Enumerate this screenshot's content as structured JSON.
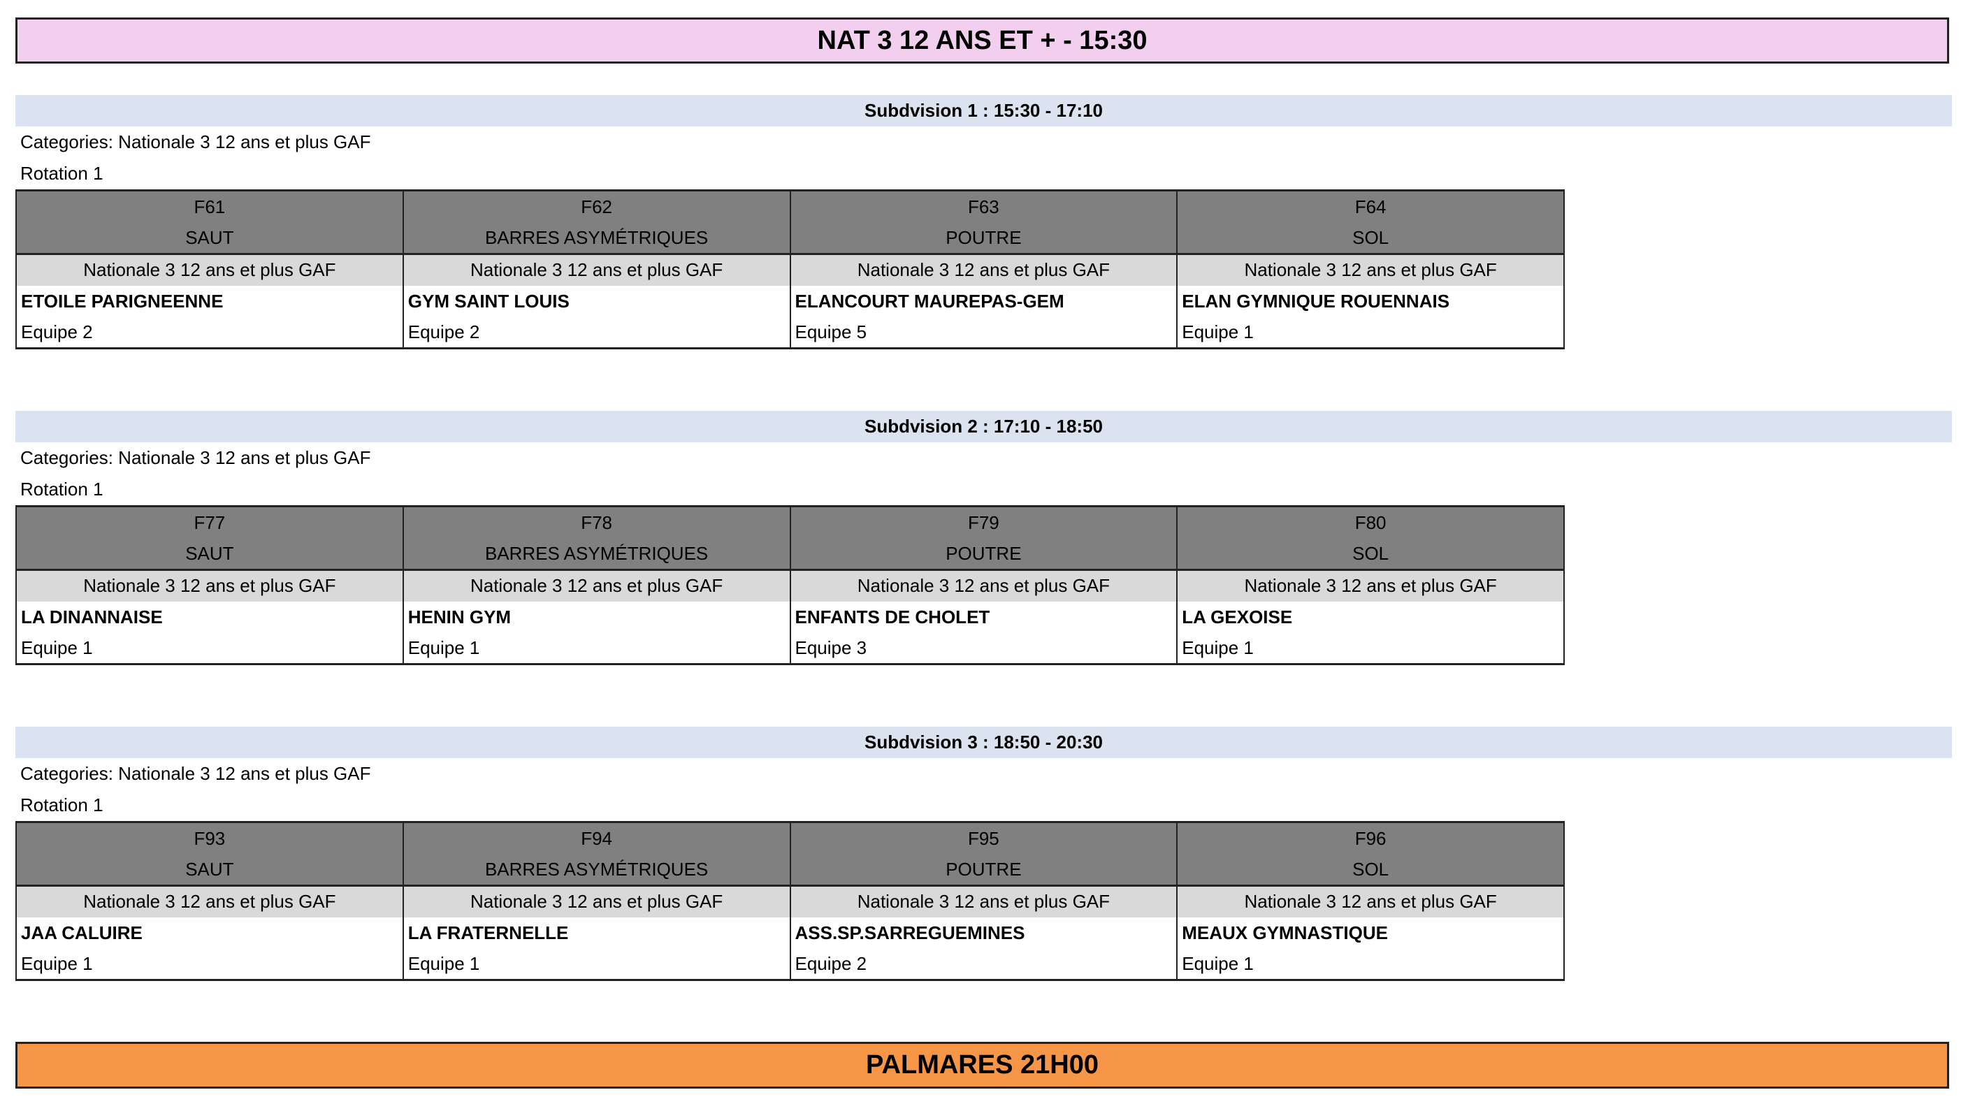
{
  "title": "NAT 3 12 ANS ET + - 15:30",
  "footer": "PALMARES 21H00",
  "colors": {
    "title_bg": "#F2CEEF",
    "subdivision_bg": "#DCE3F0",
    "header_bg": "#808080",
    "category_bg": "#D9D9D9",
    "palmares_bg": "#F79646"
  },
  "subdivisions": [
    {
      "heading": "Subdvision 1 : 15:30 - 17:10",
      "categories": "Categories: Nationale 3 12 ans et plus GAF",
      "rotation": "Rotation 1",
      "columns": [
        {
          "code": "F61",
          "apparatus": "SAUT",
          "category": "Nationale 3 12 ans et plus GAF",
          "club": "ETOILE PARIGNEENNE",
          "team": "Equipe 2"
        },
        {
          "code": "F62",
          "apparatus": "BARRES ASYMÉTRIQUES",
          "category": "Nationale 3 12 ans et plus GAF",
          "club": "GYM SAINT LOUIS",
          "team": "Equipe 2"
        },
        {
          "code": "F63",
          "apparatus": "POUTRE",
          "category": "Nationale 3 12 ans et plus GAF",
          "club": "ELANCOURT MAUREPAS-GEM",
          "team": "Equipe 5"
        },
        {
          "code": "F64",
          "apparatus": "SOL",
          "category": "Nationale 3 12 ans et plus GAF",
          "club": "ELAN GYMNIQUE ROUENNAIS",
          "team": "Equipe 1"
        }
      ]
    },
    {
      "heading": "Subdvision 2 : 17:10 - 18:50",
      "categories": "Categories: Nationale 3 12 ans et plus GAF",
      "rotation": "Rotation 1",
      "columns": [
        {
          "code": "F77",
          "apparatus": "SAUT",
          "category": "Nationale 3 12 ans et plus GAF",
          "club": "LA DINANNAISE",
          "team": "Equipe 1"
        },
        {
          "code": "F78",
          "apparatus": "BARRES ASYMÉTRIQUES",
          "category": "Nationale 3 12 ans et plus GAF",
          "club": "HENIN GYM",
          "team": "Equipe 1"
        },
        {
          "code": "F79",
          "apparatus": "POUTRE",
          "category": "Nationale 3 12 ans et plus GAF",
          "club": "ENFANTS DE CHOLET",
          "team": "Equipe 3"
        },
        {
          "code": "F80",
          "apparatus": "SOL",
          "category": "Nationale 3 12 ans et plus GAF",
          "club": "LA GEXOISE",
          "team": "Equipe 1"
        }
      ]
    },
    {
      "heading": "Subdvision 3 : 18:50 - 20:30",
      "categories": "Categories: Nationale 3 12 ans et plus GAF",
      "rotation": "Rotation 1",
      "columns": [
        {
          "code": "F93",
          "apparatus": "SAUT",
          "category": "Nationale 3 12 ans et plus GAF",
          "club": "JAA CALUIRE",
          "team": "Equipe 1"
        },
        {
          "code": "F94",
          "apparatus": "BARRES ASYMÉTRIQUES",
          "category": "Nationale 3 12 ans et plus GAF",
          "club": "LA FRATERNELLE",
          "team": "Equipe 1"
        },
        {
          "code": "F95",
          "apparatus": "POUTRE",
          "category": "Nationale 3 12 ans et plus GAF",
          "club": "ASS.SP.SARREGUEMINES",
          "team": "Equipe 2"
        },
        {
          "code": "F96",
          "apparatus": "SOL",
          "category": "Nationale 3 12 ans et plus GAF",
          "club": "MEAUX GYMNASTIQUE",
          "team": "Equipe 1"
        }
      ]
    }
  ]
}
